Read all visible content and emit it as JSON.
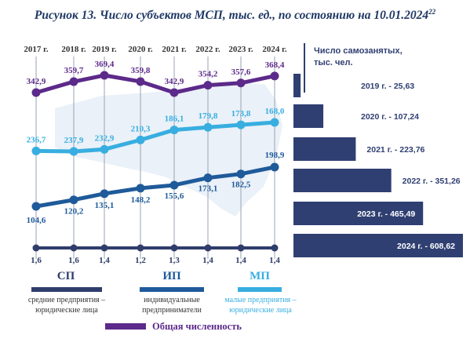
{
  "title": {
    "text": "Рисунок 13. Число субъектов МСП, тыс. ед., по состоянию на 10.01.2024",
    "footnote": "22"
  },
  "colors": {
    "sp": "#2f3d6b",
    "ip": "#1f5a9a",
    "mp": "#38aee0",
    "total": "#5c2a8a",
    "selfemp": "#2f3f72",
    "map": "#eaf1f8"
  },
  "chart_data": [
    {
      "type": "line",
      "categories": [
        "2017 г.",
        "2018 г.",
        "2019 г.",
        "2020 г.",
        "2021 г.",
        "2022 г.",
        "2023 г.",
        "2024 г."
      ],
      "series": [
        {
          "key": "total",
          "name": "Общая численность",
          "values": [
            342.9,
            359.7,
            369.4,
            359.8,
            342.9,
            354.2,
            357.6,
            368.4
          ],
          "labels": [
            "342,9",
            "359,7",
            "369,4",
            "359,8",
            "342,9",
            "354,2",
            "357,6",
            "368,4"
          ]
        },
        {
          "key": "mp",
          "name": "МП",
          "values": [
            236.7,
            237.9,
            232.9,
            210.3,
            186.1,
            179.8,
            173.8,
            168.0
          ],
          "labels": [
            "236,7",
            "237,9",
            "232,9",
            "210,3",
            "186,1",
            "179,8",
            "173,8",
            "168,0"
          ]
        },
        {
          "key": "ip",
          "name": "ИП",
          "values": [
            104.6,
            120.2,
            135.1,
            148.2,
            155.6,
            173.1,
            182.5,
            198.9
          ],
          "labels": [
            "104,6",
            "120,2",
            "135,1",
            "148,2",
            "155,6",
            "173,1",
            "182,5",
            "198,9"
          ]
        },
        {
          "key": "sp",
          "name": "СП",
          "values": [
            1.6,
            1.6,
            1.4,
            1.2,
            1.3,
            1.4,
            1.4,
            1.4
          ],
          "labels": [
            "1,6",
            "1,6",
            "1,4",
            "1,2",
            "1,3",
            "1,4",
            "1,4",
            "1,4"
          ]
        }
      ]
    },
    {
      "type": "bar",
      "orientation": "horizontal",
      "title": "Число самозанятых, тыс. чел.",
      "categories": [
        "2019 г.",
        "2020 г.",
        "2021 г.",
        "2022 г.",
        "2023 г.",
        "2024 г."
      ],
      "values": [
        25.63,
        107.24,
        223.76,
        351.26,
        465.49,
        608.62
      ],
      "labels": [
        "2019 г. - 25,63",
        "2020 г. - 107,24",
        "2021 г. - 223,76",
        "2022 г. - 351,26",
        "2023 г. - 465,49",
        "2024 г. - 608,62"
      ]
    }
  ],
  "legend": {
    "sp": {
      "code": "СП",
      "desc1": "средние предприятия –",
      "desc2": "юридические лица"
    },
    "ip": {
      "code": "ИП",
      "desc1": "индивидуальные",
      "desc2": "предприниматели"
    },
    "mp": {
      "code": "МП",
      "desc1": "малые предприятия –",
      "desc2": "юридические лица"
    },
    "total": "Общая численность"
  }
}
